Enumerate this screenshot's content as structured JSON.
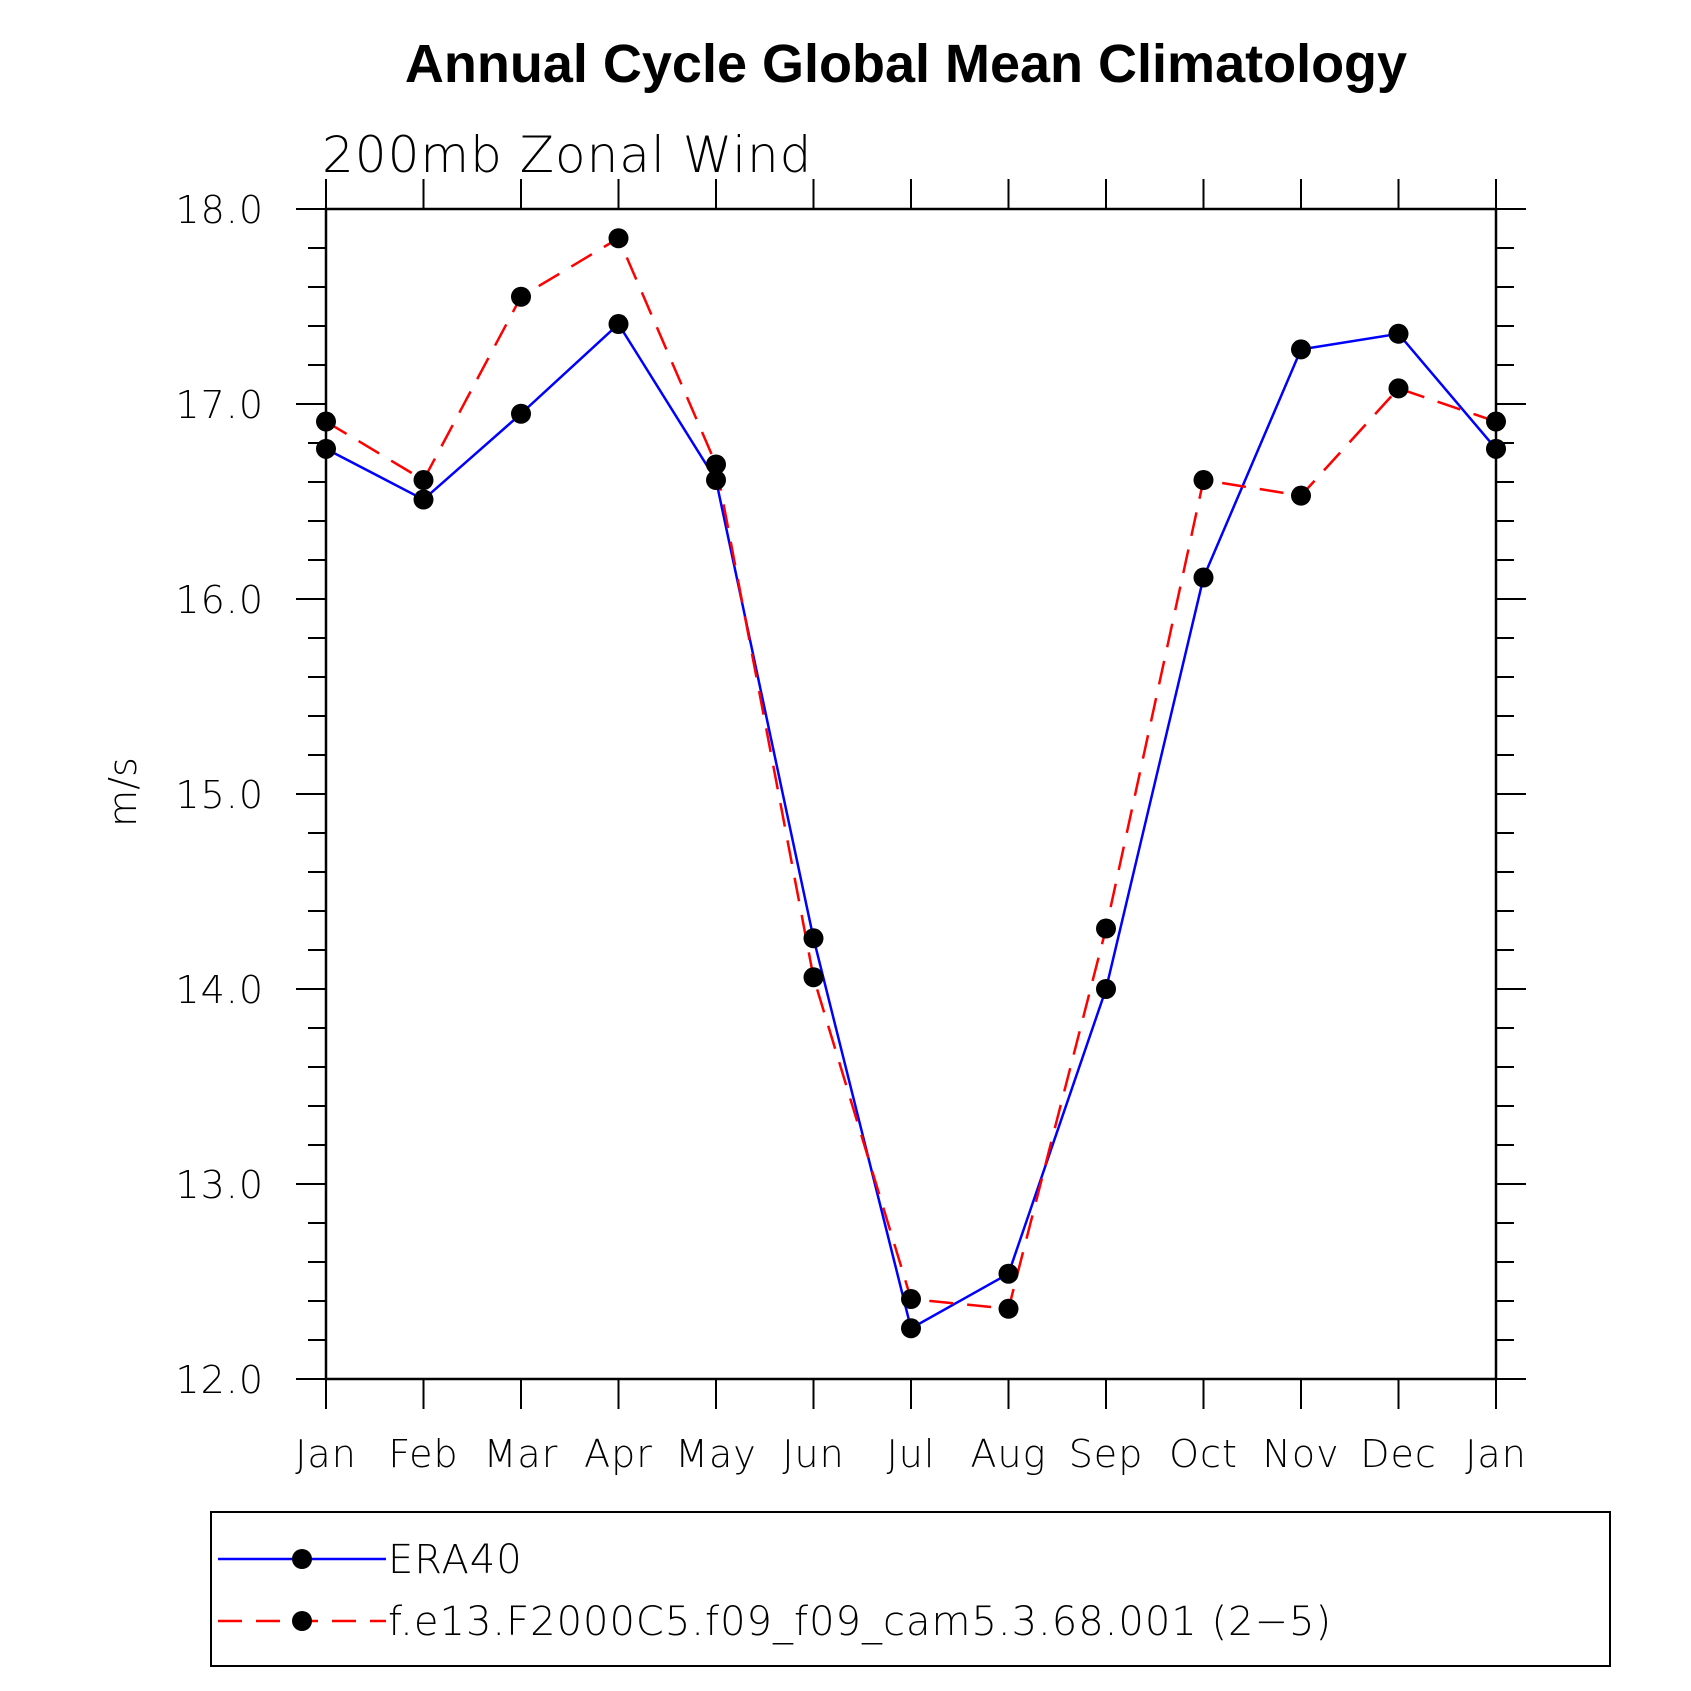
{
  "chart_data": {
    "type": "line",
    "title": "Annual Cycle Global Mean Climatology",
    "subtitle": "200mb  Zonal  Wind",
    "xlabel": "",
    "ylabel": "m/s",
    "ylim": [
      12.0,
      18.0
    ],
    "yticks": [
      "12.0",
      "13.0",
      "14.0",
      "15.0",
      "16.0",
      "17.0",
      "18.0"
    ],
    "categories": [
      "Jan",
      "Feb",
      "Mar",
      "Apr",
      "May",
      "Jun",
      "Jul",
      "Aug",
      "Sep",
      "Oct",
      "Nov",
      "Dec",
      "Jan"
    ],
    "legend_position": "bottom",
    "grid": false,
    "series": [
      {
        "name": "ERA40",
        "color": "#0000ff",
        "style": "solid",
        "marker": "circle",
        "values": [
          16.77,
          16.51,
          16.95,
          17.41,
          16.61,
          14.26,
          12.26,
          12.54,
          14.0,
          16.11,
          17.28,
          17.36,
          16.77
        ]
      },
      {
        "name": "f.e13.F2000C5.f09_f09_cam5.3.68.001 (2−5)",
        "color": "#ff0000",
        "style": "dashed",
        "marker": "circle",
        "values": [
          16.91,
          16.61,
          17.55,
          17.85,
          16.69,
          14.06,
          12.41,
          12.36,
          14.31,
          16.61,
          16.53,
          17.08,
          16.91
        ]
      }
    ]
  }
}
